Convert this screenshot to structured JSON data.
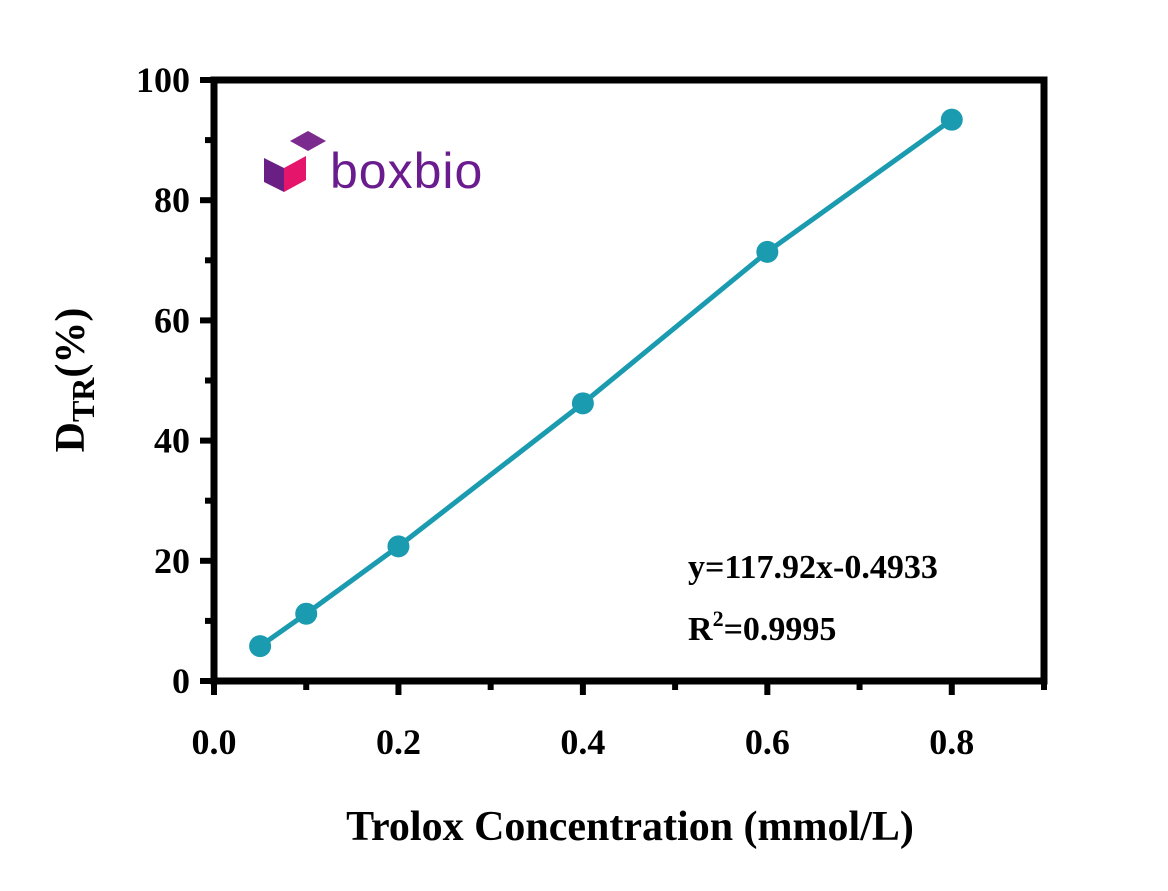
{
  "logo": {
    "text": "boxbio"
  },
  "chart_data": {
    "type": "scatter",
    "title": "",
    "xlabel": "Trolox Concentration (mmol/L)",
    "ylabel_main": "D",
    "ylabel_sub": "TR",
    "ylabel_tail": "(%)",
    "xlim": [
      0,
      0.9
    ],
    "ylim": [
      0,
      100
    ],
    "x_ticks": [
      0.0,
      0.2,
      0.4,
      0.6,
      0.8
    ],
    "x_tick_labels": [
      "0.0",
      "0.2",
      "0.4",
      "0.6",
      "0.8"
    ],
    "y_ticks": [
      0,
      20,
      40,
      60,
      80,
      100
    ],
    "y_tick_labels": [
      "0",
      "20",
      "40",
      "60",
      "80",
      "100"
    ],
    "series": [
      {
        "x": [
          0.05,
          0.1,
          0.2,
          0.4,
          0.6,
          0.8
        ],
        "y": [
          5.8,
          11.2,
          22.4,
          46.2,
          71.4,
          93.4
        ],
        "color": "#1a9bb0"
      }
    ],
    "fit": {
      "slope": 117.92,
      "intercept": -0.4933,
      "r2": 0.9995
    },
    "annotations": {
      "equation": "y=117.92x-0.4933",
      "r2_label": "R",
      "r2_sup": "2",
      "r2_value": "=0.9995"
    },
    "grid": false
  }
}
